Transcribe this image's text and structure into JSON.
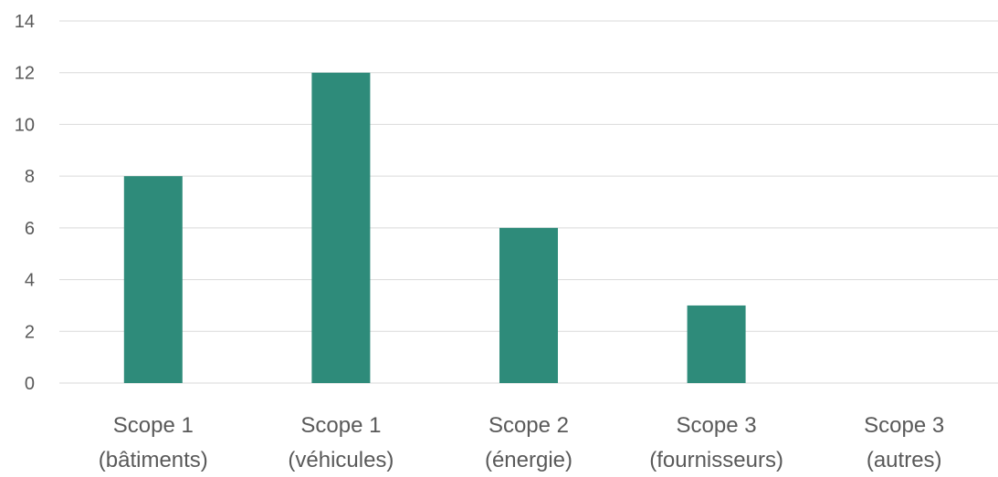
{
  "chart_data": {
    "type": "bar",
    "title": "",
    "xlabel": "",
    "ylabel": "",
    "categories": [
      [
        "Scope 1",
        "(bâtiments)"
      ],
      [
        "Scope 1",
        "(véhicules)"
      ],
      [
        "Scope 2",
        "(énergie)"
      ],
      [
        "Scope 3",
        "(fournisseurs)"
      ],
      [
        "Scope 3",
        "(autres)"
      ]
    ],
    "values": [
      8,
      12,
      6,
      3,
      0
    ],
    "ylim": [
      0,
      14
    ],
    "yticks": [
      "0",
      "2",
      "4",
      "6",
      "8",
      "10",
      "12",
      "14"
    ],
    "grid": true,
    "legend": "none",
    "colors": {
      "bar": "#2e8b7a",
      "grid": "#d9d9d9",
      "text": "#595959"
    }
  }
}
